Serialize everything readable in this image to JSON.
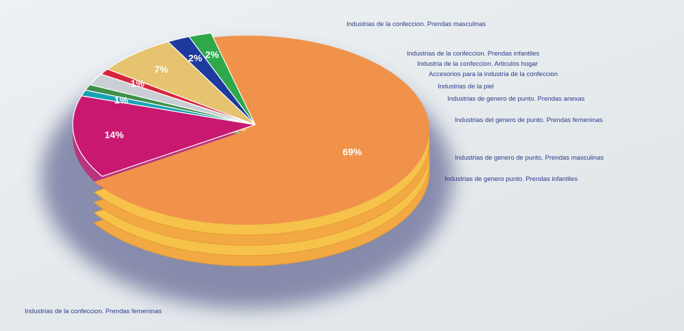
{
  "chart_data": {
    "type": "pie",
    "title": "",
    "slices": [
      {
        "label": "Industrias de la confeccion. Prendas femeninas",
        "value": 69,
        "value_label": "69%",
        "color": "#f0924a"
      },
      {
        "label": "Industrias de la confeccion. Prendas masculinas",
        "value": 14,
        "value_label": "14%",
        "color": "#c8186f"
      },
      {
        "label": "Industrias de la confeccion. Prendas infantiles",
        "value": 1,
        "value_label": "1%",
        "color": "#16a3b4"
      },
      {
        "label": "Industria de la confeccion. Articulos hogar",
        "value": 1,
        "value_label": "",
        "color": "#3f8f4a"
      },
      {
        "label": "Accesorios para la industria de la confeccion",
        "value": 2,
        "value_label": "",
        "color": "#c9cfd3"
      },
      {
        "label": "Industrias de la piel",
        "value": 1,
        "value_label": "1%",
        "color": "#d8243c"
      },
      {
        "label": "Industrias de genero de punto. Prendas anexas",
        "value": 0,
        "value_label": "",
        "color": "#d8243c"
      },
      {
        "label": "Industrias del genero de punto. Prendas femeninas",
        "value": 7,
        "value_label": "7%",
        "color": "#e6c36f"
      },
      {
        "label": "Industrias de genero de punto. Prendas masculinas",
        "value": 2,
        "value_label": "2%",
        "color": "#1e3a9e"
      },
      {
        "label": "Industrias de genero punto. Prendas infantiles",
        "value": 2,
        "value_label": "2%",
        "color": "#2fa84a"
      }
    ]
  }
}
